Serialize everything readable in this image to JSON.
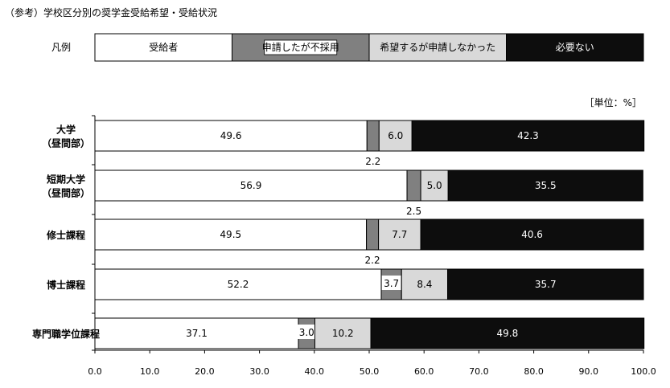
{
  "chart_data": {
    "type": "bar",
    "orientation": "horizontal",
    "stacked": true,
    "title": "（参考）学校区分別の奨学金受給希望・受給状況",
    "unit_label": "［単位：%］",
    "legend_title": "凡例",
    "legend_position": "top",
    "xlim": [
      0,
      100
    ],
    "x_ticks": [
      "0.0",
      "10.0",
      "20.0",
      "30.0",
      "40.0",
      "50.0",
      "60.0",
      "70.0",
      "80.0",
      "90.0",
      "100.0"
    ],
    "categories": [
      {
        "lines": [
          "大学",
          "（昼間部）"
        ]
      },
      {
        "lines": [
          "短期大学",
          "（昼間部）"
        ]
      },
      {
        "lines": [
          "修士課程"
        ]
      },
      {
        "lines": [
          "博士課程"
        ]
      },
      {
        "lines": [
          "専門職学位課程"
        ]
      }
    ],
    "series": [
      {
        "name": "受給者",
        "color": "#ffffff",
        "values": [
          49.6,
          56.9,
          49.5,
          52.2,
          37.1
        ],
        "labels": [
          "49.6",
          "56.9",
          "49.5",
          "52.2",
          "37.1"
        ]
      },
      {
        "name": "申請したが不採用",
        "color": "#808080",
        "values": [
          2.2,
          2.5,
          2.2,
          3.7,
          3.0
        ],
        "labels": [
          "2.2",
          "2.5",
          "2.2",
          "3.7",
          "3.0"
        ]
      },
      {
        "name": "希望するが申請しなかった",
        "color": "#d9d9d9",
        "values": [
          6.0,
          5.0,
          7.7,
          8.4,
          10.2
        ],
        "labels": [
          "6.0",
          "5.0",
          "7.7",
          "8.4",
          "10.2"
        ]
      },
      {
        "name": "必要ない",
        "color": "#0d0d0d",
        "values": [
          42.3,
          35.5,
          40.6,
          35.7,
          49.8
        ],
        "labels": [
          "42.3",
          "35.5",
          "40.6",
          "35.7",
          "49.8"
        ]
      }
    ],
    "grid": false
  }
}
